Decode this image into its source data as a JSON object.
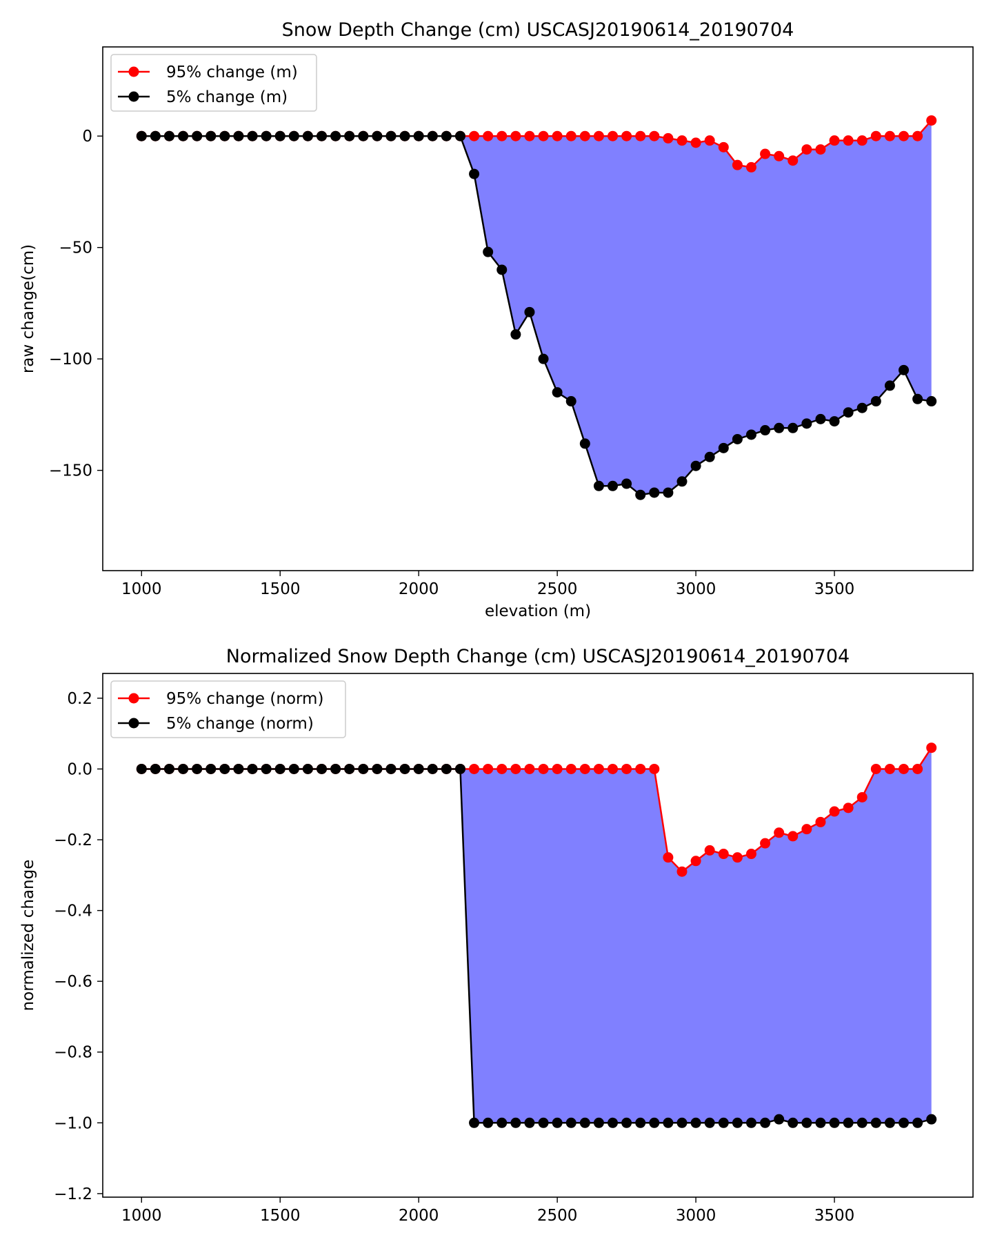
{
  "chart_data": [
    {
      "type": "line",
      "title": "Snow Depth Change (cm) USCASJ20190614_20190704",
      "xlabel": "elevation (m)",
      "ylabel": "raw change(cm)",
      "xlim": [
        860,
        4000
      ],
      "ylim": [
        -195,
        40
      ],
      "xticks": [
        1000,
        1500,
        2000,
        2500,
        3000,
        3500
      ],
      "xtick_labels": [
        "1000",
        "1500",
        "2000",
        "2500",
        "3000",
        "3500"
      ],
      "yticks": [
        0,
        -50,
        -100,
        -150
      ],
      "ytick_labels": [
        "0",
        "−50",
        "−100",
        "−150"
      ],
      "x": [
        1000,
        1050,
        1100,
        1150,
        1200,
        1250,
        1300,
        1350,
        1400,
        1450,
        1500,
        1550,
        1600,
        1650,
        1700,
        1750,
        1800,
        1850,
        1900,
        1950,
        2000,
        2050,
        2100,
        2150,
        2200,
        2250,
        2300,
        2350,
        2400,
        2450,
        2500,
        2550,
        2600,
        2650,
        2700,
        2750,
        2800,
        2850,
        2900,
        2950,
        3000,
        3050,
        3100,
        3150,
        3200,
        3250,
        3300,
        3350,
        3400,
        3450,
        3500,
        3550,
        3600,
        3650,
        3700,
        3750,
        3800,
        3850
      ],
      "series": [
        {
          "name": "95% change (m)",
          "color": "#ff0000",
          "values": [
            0,
            0,
            0,
            0,
            0,
            0,
            0,
            0,
            0,
            0,
            0,
            0,
            0,
            0,
            0,
            0,
            0,
            0,
            0,
            0,
            0,
            0,
            0,
            0,
            0,
            0,
            0,
            0,
            0,
            0,
            0,
            0,
            0,
            0,
            0,
            0,
            0,
            0,
            -1,
            -2,
            -3,
            -2,
            -5,
            -13,
            -14,
            -8,
            -9,
            -11,
            -6,
            -6,
            -2,
            -2,
            -2,
            0,
            0,
            0,
            0,
            7
          ]
        },
        {
          "name": "5% change (m)",
          "color": "#000000",
          "values": [
            0,
            0,
            0,
            0,
            0,
            0,
            0,
            0,
            0,
            0,
            0,
            0,
            0,
            0,
            0,
            0,
            0,
            0,
            0,
            0,
            0,
            0,
            0,
            0,
            -17,
            -52,
            -60,
            -89,
            -79,
            -100,
            -115,
            -119,
            -138,
            -157,
            -157,
            -156,
            -161,
            -160,
            -160,
            -155,
            -148,
            -144,
            -140,
            -136,
            -134,
            -132,
            -131,
            -131,
            -129,
            -127,
            -128,
            -124,
            -122,
            -119,
            -112,
            -105,
            -118,
            -119
          ]
        }
      ],
      "fill_between": {
        "color": "#8080ff"
      },
      "legend": "top-left",
      "grid": false
    },
    {
      "type": "line",
      "title": "Normalized Snow Depth Change (cm) USCASJ20190614_20190704",
      "xlabel": "",
      "ylabel": "normalized change",
      "xlim": [
        860,
        4000
      ],
      "ylim": [
        -1.21,
        0.27
      ],
      "xticks": [
        1000,
        1500,
        2000,
        2500,
        3000,
        3500
      ],
      "xtick_labels": [
        "1000",
        "1500",
        "2000",
        "2500",
        "3000",
        "3500"
      ],
      "yticks": [
        0.2,
        0.0,
        -0.2,
        -0.4,
        -0.6,
        -0.8,
        -1.0,
        -1.2
      ],
      "ytick_labels": [
        "0.2",
        "0.0",
        "−0.2",
        "−0.4",
        "−0.6",
        "−0.8",
        "−1.0",
        "−1.2"
      ],
      "x": [
        1000,
        1050,
        1100,
        1150,
        1200,
        1250,
        1300,
        1350,
        1400,
        1450,
        1500,
        1550,
        1600,
        1650,
        1700,
        1750,
        1800,
        1850,
        1900,
        1950,
        2000,
        2050,
        2100,
        2150,
        2200,
        2250,
        2300,
        2350,
        2400,
        2450,
        2500,
        2550,
        2600,
        2650,
        2700,
        2750,
        2800,
        2850,
        2900,
        2950,
        3000,
        3050,
        3100,
        3150,
        3200,
        3250,
        3300,
        3350,
        3400,
        3450,
        3500,
        3550,
        3600,
        3650,
        3700,
        3750,
        3800,
        3850
      ],
      "series": [
        {
          "name": "95% change (norm)",
          "color": "#ff0000",
          "values": [
            0,
            0,
            0,
            0,
            0,
            0,
            0,
            0,
            0,
            0,
            0,
            0,
            0,
            0,
            0,
            0,
            0,
            0,
            0,
            0,
            0,
            0,
            0,
            0,
            0,
            0,
            0,
            0,
            0,
            0,
            0,
            0,
            0,
            0,
            0,
            0,
            0,
            0,
            -0.25,
            -0.29,
            -0.26,
            -0.23,
            -0.24,
            -0.25,
            -0.24,
            -0.21,
            -0.18,
            -0.19,
            -0.17,
            -0.15,
            -0.12,
            -0.11,
            -0.08,
            0,
            0,
            0,
            0,
            0.06
          ]
        },
        {
          "name": "5% change (norm)",
          "color": "#000000",
          "values": [
            0,
            0,
            0,
            0,
            0,
            0,
            0,
            0,
            0,
            0,
            0,
            0,
            0,
            0,
            0,
            0,
            0,
            0,
            0,
            0,
            0,
            0,
            0,
            0,
            -1,
            -1,
            -1,
            -1,
            -1,
            -1,
            -1,
            -1,
            -1,
            -1,
            -1,
            -1,
            -1,
            -1,
            -1,
            -1,
            -1,
            -1,
            -1,
            -1,
            -1,
            -1,
            -0.99,
            -1,
            -1,
            -1,
            -1,
            -1,
            -1,
            -1,
            -1,
            -1,
            -1,
            -0.99
          ]
        }
      ],
      "fill_between": {
        "color": "#8080ff"
      },
      "legend": "top-left",
      "grid": false
    }
  ]
}
